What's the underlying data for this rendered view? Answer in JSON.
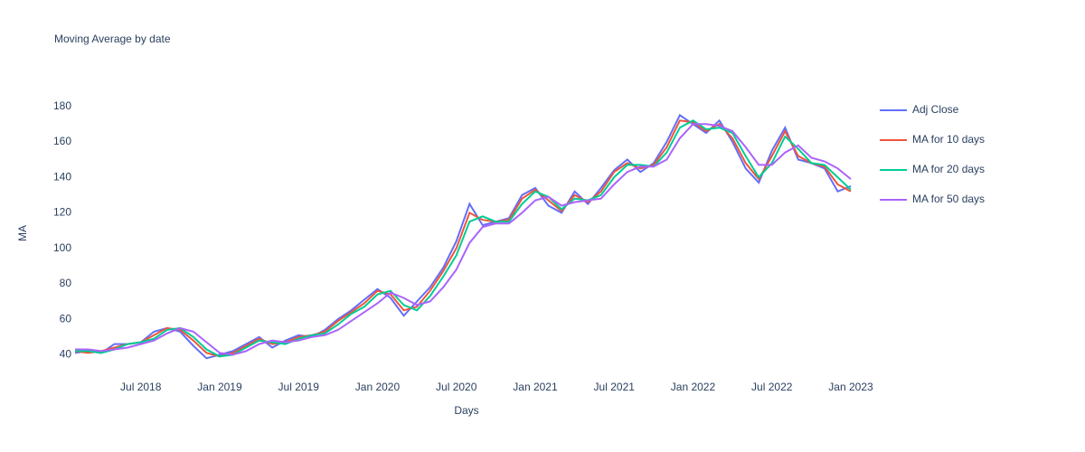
{
  "chart_data": {
    "type": "line",
    "title": "Moving Average by date",
    "x_label": "Days",
    "y_label": "MA",
    "x": [
      "2018-02",
      "2018-03",
      "2018-04",
      "2018-05",
      "2018-06",
      "2018-07",
      "2018-08",
      "2018-09",
      "2018-10",
      "2018-11",
      "2018-12",
      "2019-01",
      "2019-02",
      "2019-03",
      "2019-04",
      "2019-05",
      "2019-06",
      "2019-07",
      "2019-08",
      "2019-09",
      "2019-10",
      "2019-11",
      "2019-12",
      "2020-01",
      "2020-02",
      "2020-03",
      "2020-04",
      "2020-05",
      "2020-06",
      "2020-07",
      "2020-08",
      "2020-09",
      "2020-10",
      "2020-11",
      "2020-12",
      "2021-01",
      "2021-02",
      "2021-03",
      "2021-04",
      "2021-05",
      "2021-06",
      "2021-07",
      "2021-08",
      "2021-09",
      "2021-10",
      "2021-11",
      "2021-12",
      "2022-01",
      "2022-02",
      "2022-03",
      "2022-04",
      "2022-05",
      "2022-06",
      "2022-07",
      "2022-08",
      "2022-09",
      "2022-10",
      "2022-11",
      "2022-12",
      "2023-01"
    ],
    "series": [
      {
        "name": "Adj Close",
        "color": "#636efa",
        "values": [
          41,
          42,
          41,
          46,
          46,
          47,
          53,
          55,
          53,
          45,
          38,
          40,
          42,
          46,
          50,
          44,
          48,
          51,
          50,
          54,
          60,
          65,
          71,
          77,
          72,
          62,
          70,
          78,
          89,
          104,
          125,
          113,
          115,
          117,
          130,
          134,
          124,
          120,
          132,
          125,
          134,
          144,
          150,
          143,
          148,
          160,
          175,
          170,
          165,
          172,
          160,
          145,
          137,
          155,
          168,
          150,
          148,
          145,
          132,
          135
        ]
      },
      {
        "name": "MA for 10 days",
        "color": "#EF553B",
        "values": [
          42,
          41,
          42,
          44,
          46,
          47,
          51,
          55,
          54,
          48,
          41,
          39,
          41,
          45,
          49,
          46,
          47,
          50,
          51,
          53,
          59,
          64,
          69,
          76,
          74,
          65,
          67,
          76,
          87,
          100,
          120,
          116,
          115,
          116,
          128,
          133,
          127,
          121,
          130,
          126,
          132,
          143,
          148,
          145,
          147,
          157,
          172,
          171,
          166,
          170,
          162,
          148,
          139,
          152,
          166,
          152,
          148,
          146,
          136,
          132
        ]
      },
      {
        "name": "MA for 20 days",
        "color": "#00cc96",
        "values": [
          42,
          42,
          41,
          43,
          46,
          47,
          49,
          54,
          55,
          50,
          43,
          39,
          40,
          44,
          48,
          47,
          46,
          49,
          51,
          52,
          57,
          63,
          67,
          74,
          76,
          68,
          65,
          73,
          84,
          96,
          115,
          118,
          115,
          115,
          125,
          132,
          129,
          122,
          128,
          127,
          130,
          140,
          147,
          147,
          146,
          154,
          168,
          172,
          167,
          168,
          165,
          152,
          140,
          148,
          163,
          156,
          148,
          147,
          140,
          133
        ]
      },
      {
        "name": "MA for 50 days",
        "color": "#ab63fa",
        "values": [
          43,
          43,
          42,
          43,
          44,
          46,
          48,
          52,
          55,
          53,
          47,
          41,
          40,
          42,
          46,
          48,
          47,
          48,
          50,
          51,
          54,
          59,
          64,
          69,
          75,
          72,
          68,
          70,
          78,
          88,
          103,
          112,
          114,
          114,
          120,
          127,
          129,
          124,
          126,
          127,
          128,
          136,
          143,
          146,
          146,
          150,
          162,
          170,
          170,
          169,
          166,
          157,
          147,
          147,
          154,
          158,
          151,
          149,
          145,
          139
        ]
      }
    ],
    "xlim": [
      "2018-02",
      "2023-01"
    ],
    "xticks": [
      {
        "value": "2018-07",
        "label": "Jul 2018"
      },
      {
        "value": "2019-01",
        "label": "Jan 2019"
      },
      {
        "value": "2019-07",
        "label": "Jul 2019"
      },
      {
        "value": "2020-01",
        "label": "Jan 2020"
      },
      {
        "value": "2020-07",
        "label": "Jul 2020"
      },
      {
        "value": "2021-01",
        "label": "Jan 2021"
      },
      {
        "value": "2021-07",
        "label": "Jul 2021"
      },
      {
        "value": "2022-01",
        "label": "Jan 2022"
      },
      {
        "value": "2022-07",
        "label": "Jul 2022"
      },
      {
        "value": "2023-01",
        "label": "Jan 2023"
      }
    ],
    "ylim": [
      30,
      190
    ],
    "yticks": [
      40,
      60,
      80,
      100,
      120,
      140,
      160,
      180
    ],
    "grid": false,
    "legend": "right"
  }
}
